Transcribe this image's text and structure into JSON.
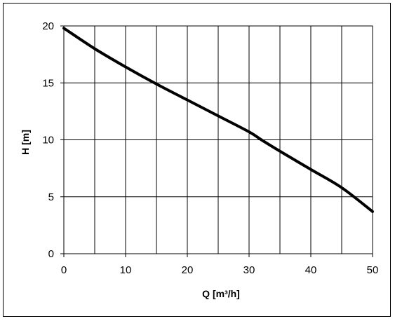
{
  "chart_data": {
    "type": "line",
    "title": "",
    "xlabel": "Q [m³/h]",
    "ylabel": "H [m]",
    "xlim": [
      0,
      50
    ],
    "ylim": [
      0,
      20
    ],
    "xticks": [
      0,
      10,
      20,
      30,
      40,
      50
    ],
    "yticks": [
      0,
      5,
      10,
      15,
      20
    ],
    "grid": true,
    "legend": "none",
    "series": [
      {
        "x": [
          0,
          5,
          10,
          15,
          20,
          25,
          30,
          32,
          35,
          40,
          45,
          50
        ],
        "y": [
          19.8,
          18.0,
          16.4,
          14.9,
          13.5,
          12.1,
          10.7,
          10.0,
          9.0,
          7.4,
          5.8,
          3.7
        ]
      }
    ]
  },
  "colors": {
    "line": "#000000",
    "grid": "#000000",
    "background": "#ffffff"
  }
}
